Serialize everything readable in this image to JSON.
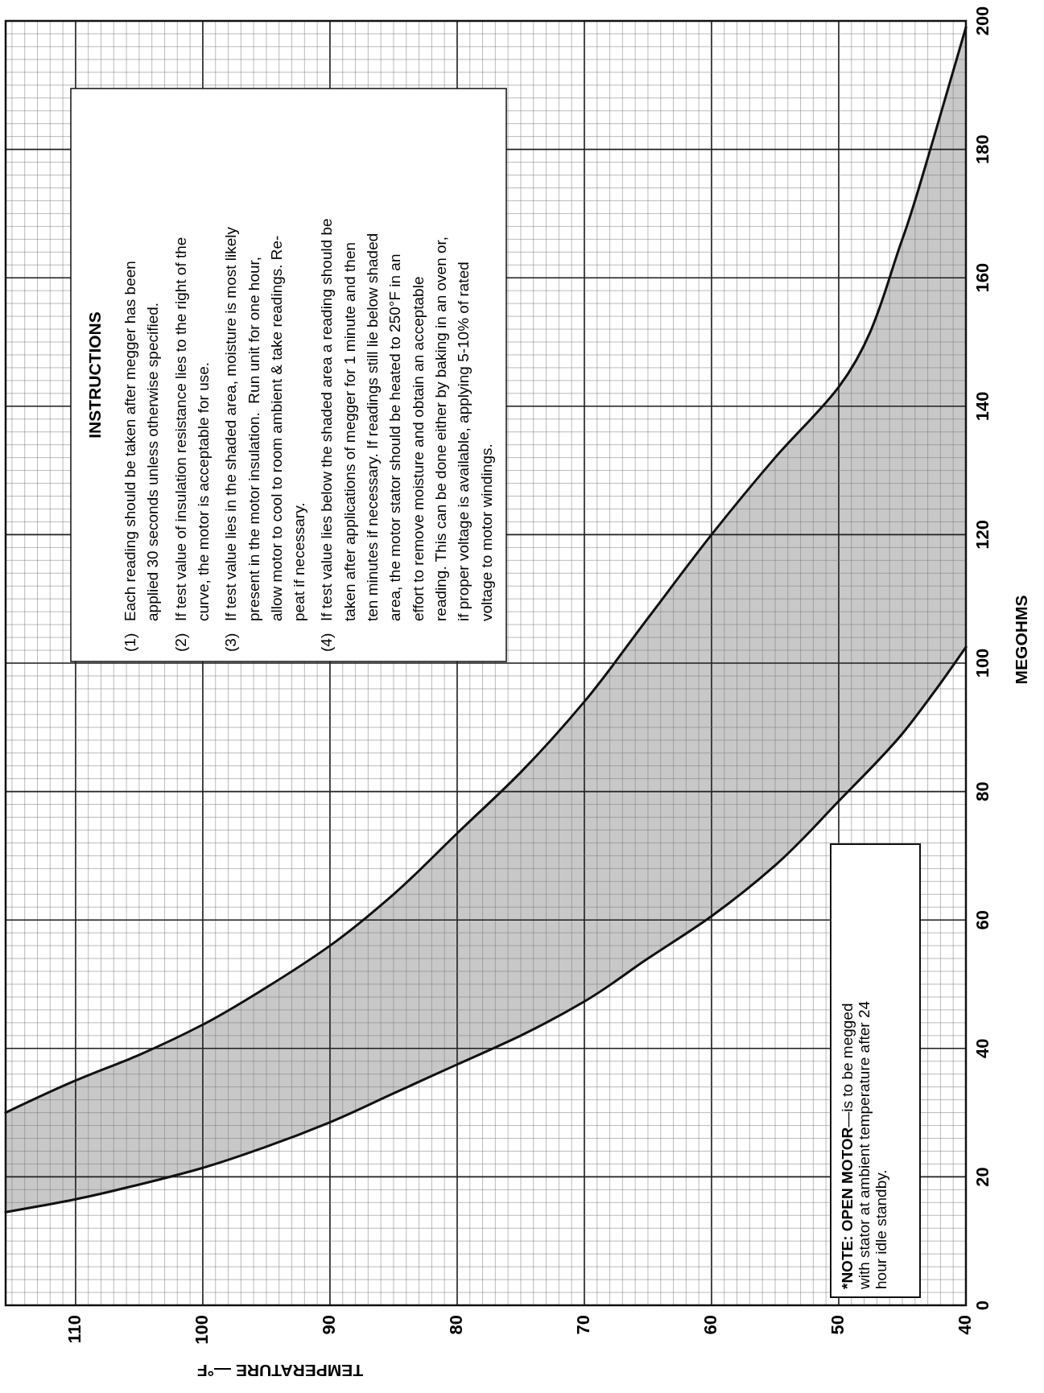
{
  "chart_data": {
    "type": "line",
    "xlabel": "TEMPERATURE —°F",
    "ylabel": "MEGOHMS",
    "xlim": [
      115.5,
      40
    ],
    "ylim": [
      0,
      200
    ],
    "xticks": [
      110,
      100,
      90,
      80,
      70,
      60,
      50,
      40
    ],
    "yticks": [
      0,
      20,
      40,
      60,
      80,
      100,
      120,
      140,
      160,
      180,
      200
    ],
    "grid": true,
    "x": [
      115.5,
      110,
      105,
      100,
      95,
      90,
      85,
      80,
      75,
      70,
      65,
      60,
      55,
      50,
      45,
      42.5,
      40
    ],
    "series": [
      {
        "color": "#111111",
        "values": [
          14.5,
          16.5,
          18.8,
          21.4,
          24.7,
          28.5,
          33,
          37.5,
          42,
          47.3,
          54,
          60.6,
          68.5,
          78.5,
          89,
          95.5,
          102.5
        ]
      },
      {
        "color": "#111111",
        "values": [
          30,
          35,
          39,
          43.7,
          49.5,
          56,
          64,
          73.5,
          83,
          94,
          107,
          120,
          132,
          143,
          166,
          182,
          199
        ],
        "lower": [
          14.5,
          16.5,
          18.8,
          21.4,
          24.7,
          28.5,
          33,
          37.5,
          42,
          47.3,
          54,
          60.6,
          68.5,
          78.5,
          89,
          95.5,
          102.5
        ],
        "upper": [
          30,
          35,
          39,
          43.7,
          49.5,
          56,
          64,
          73.5,
          83,
          94,
          107,
          120,
          132,
          143,
          166,
          182,
          199
        ]
      }
    ],
    "annotations": [
      "INSTRUCTIONS",
      "(1) Each reading should be taken after megger has been\napplied 30 seconds unless otherwise specified.",
      "(2) If test value of insulation resistance lies to the right of the\ncurve, the motor is acceptable for use.",
      "(3) If test value lies in the shaded area, moisture is most likely\npresent in the motor insulation.  Run unit for one hour,\nallow motor to cool to room ambient & take readings. Re-\npeat if necessary.",
      "(4) If test value lies below the shaded area a reading should be\ntaken after applications of megger for 1 minute and then\nten minutes if necessary. If readings still lie below shaded\narea, the motor stator should be heated to 250°F in an\neffort to remove moisture and obtain an acceptable\nreading. This can be done either by baking in an oven or,\nif proper voltage is available, applying 5-10% of rated\nvoltage to motor windings.",
      "*NOTE: OPEN MOTOR—is to be megged\nwith stator at ambient temperature after 24\nhour idle standby."
    ]
  }
}
